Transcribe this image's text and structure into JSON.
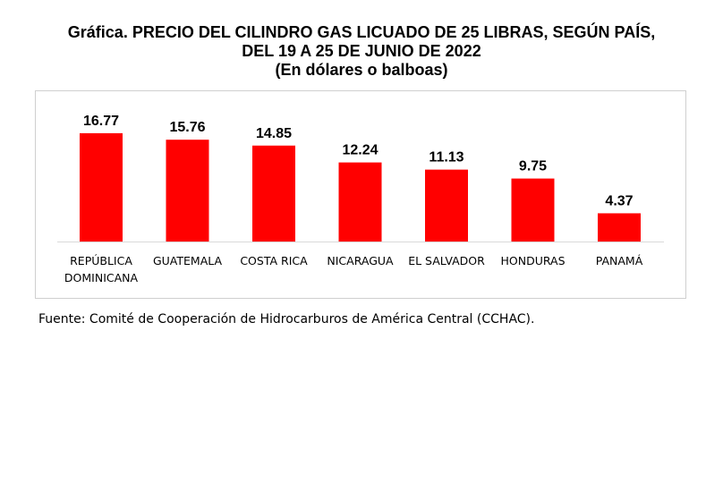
{
  "title": {
    "line1": "Gráfica. PRECIO DEL CILINDRO GAS LICUADO DE 25 LIBRAS, SEGÚN PAÍS,",
    "line2": "DEL 19 A 25 DE JUNIO DE 2022",
    "line3": "(En dólares o balboas)"
  },
  "source": "Fuente: Comité de Cooperación de Hidrocarburos de América Central (CCHAC).",
  "chart_data": {
    "type": "bar",
    "categories": [
      [
        "REPÚBLICA",
        "DOMINICANA"
      ],
      [
        "GUATEMALA"
      ],
      [
        "COSTA RICA"
      ],
      [
        "NICARAGUA"
      ],
      [
        "EL SALVADOR"
      ],
      [
        "HONDURAS"
      ],
      [
        "PANAMÁ"
      ]
    ],
    "values": [
      16.77,
      15.76,
      14.85,
      12.24,
      11.13,
      9.75,
      4.37
    ],
    "value_labels": [
      "16.77",
      "15.76",
      "14.85",
      "12.24",
      "11.13",
      "9.75",
      "4.37"
    ],
    "ylim": [
      0,
      18
    ],
    "bar_color": "#ff0000",
    "grid": false,
    "legend": false
  }
}
